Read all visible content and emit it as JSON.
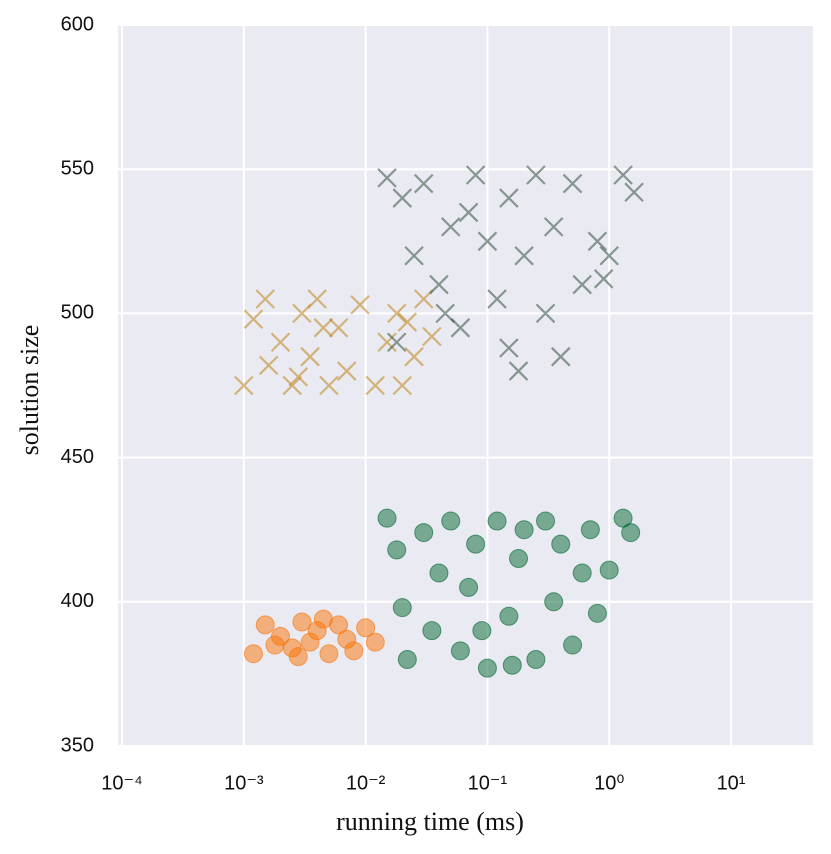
{
  "chart_data": {
    "type": "scatter",
    "x_label": "running time (ms)",
    "y_label": "solution size",
    "xscale": "log",
    "grid": true,
    "xlim": [
      9.27e-05,
      47.1
    ],
    "ylim": [
      350,
      600
    ],
    "xticks": [
      {
        "value": 0.0001,
        "label": "10⁻⁴"
      },
      {
        "value": 0.001,
        "label": "10⁻³"
      },
      {
        "value": 0.01,
        "label": "10⁻²"
      },
      {
        "value": 0.1,
        "label": "10⁻¹"
      },
      {
        "value": 1,
        "label": "10⁰"
      },
      {
        "value": 10,
        "label": "10¹"
      }
    ],
    "yticks": [
      350,
      400,
      450,
      500,
      550,
      600
    ],
    "series": [
      {
        "color": "#c0861a",
        "marker": "x",
        "x": [
          0.001,
          0.0012,
          0.0015,
          0.002,
          0.0025,
          0.003,
          0.0035,
          0.004,
          0.005,
          0.006,
          0.007,
          0.009,
          0.012,
          0.015,
          0.018,
          0.02,
          0.025,
          0.03,
          0.035,
          0.0028,
          0.0045,
          0.0016,
          0.022
        ],
        "values": [
          475,
          498,
          505,
          490,
          475,
          500,
          485,
          505,
          475,
          495,
          480,
          503,
          475,
          490,
          500,
          475,
          485,
          505,
          492,
          478,
          495,
          482,
          497
        ]
      },
      {
        "color": "#34503f",
        "marker": "x",
        "x": [
          0.015,
          0.02,
          0.025,
          0.03,
          0.04,
          0.05,
          0.06,
          0.08,
          0.1,
          0.12,
          0.15,
          0.18,
          0.2,
          0.25,
          0.3,
          0.35,
          0.4,
          0.5,
          0.6,
          0.8,
          1.0,
          1.3,
          1.6,
          0.9,
          0.15,
          0.07,
          0.018,
          0.045
        ],
        "values": [
          547,
          540,
          520,
          545,
          510,
          530,
          495,
          548,
          525,
          505,
          540,
          480,
          520,
          548,
          500,
          530,
          485,
          545,
          510,
          525,
          520,
          548,
          542,
          512,
          488,
          535,
          490,
          500
        ]
      },
      {
        "color": "#f97306",
        "marker": "o",
        "x": [
          0.0012,
          0.0015,
          0.002,
          0.0025,
          0.003,
          0.0035,
          0.004,
          0.005,
          0.006,
          0.007,
          0.008,
          0.01,
          0.012,
          0.0045,
          0.0028,
          0.0018
        ],
        "values": [
          382,
          392,
          388,
          384,
          393,
          386,
          390,
          382,
          392,
          387,
          383,
          391,
          386,
          394,
          381,
          385
        ]
      },
      {
        "color": "#016531",
        "marker": "o",
        "x": [
          0.015,
          0.018,
          0.02,
          0.022,
          0.03,
          0.035,
          0.04,
          0.05,
          0.06,
          0.07,
          0.08,
          0.1,
          0.12,
          0.15,
          0.18,
          0.2,
          0.25,
          0.3,
          0.35,
          0.4,
          0.5,
          0.6,
          0.7,
          0.8,
          1.0,
          1.3,
          1.5,
          0.09,
          0.16
        ],
        "values": [
          429,
          418,
          398,
          380,
          424,
          390,
          410,
          428,
          383,
          405,
          420,
          377,
          428,
          395,
          415,
          425,
          380,
          428,
          400,
          420,
          385,
          410,
          425,
          396,
          411,
          429,
          424,
          390,
          378
        ]
      }
    ]
  }
}
